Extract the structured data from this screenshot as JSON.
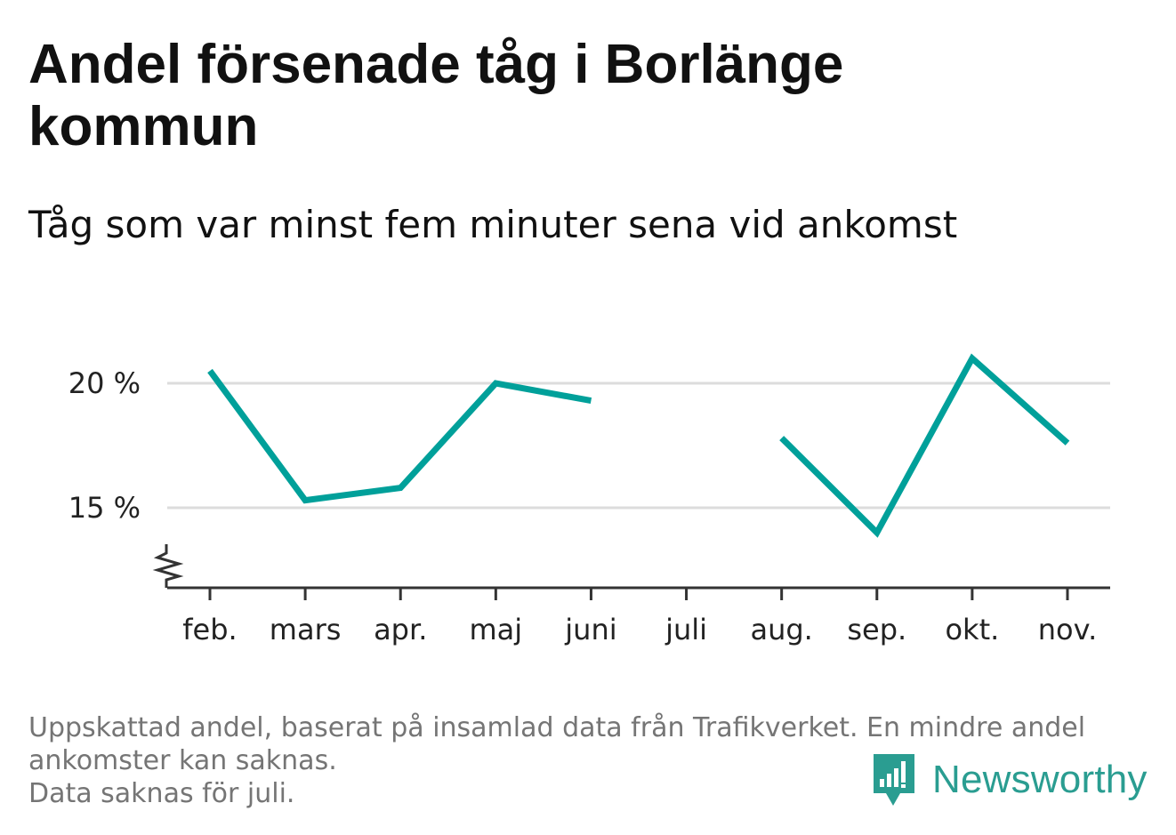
{
  "title": "Andel försenade tåg i Borlänge kommun",
  "subtitle": "Tåg som var minst fem minuter sena vid ankomst",
  "footnote": {
    "line1": "Uppskattad andel, baserat på insamlad data från Trafikverket. En mindre andel ankomster kan saknas.",
    "line2": "Data saknas för juli."
  },
  "brand": {
    "name": "Newsworthy",
    "logo_icon": "bar-chart-speech-bubble-icon",
    "color": "#2a9d91"
  },
  "chart_data": {
    "type": "line",
    "categories": [
      "feb.",
      "mars",
      "apr.",
      "maj",
      "juni",
      "juli",
      "aug.",
      "sep.",
      "okt.",
      "nov."
    ],
    "series": [
      {
        "values": [
          20.5,
          15.3,
          15.8,
          20.0,
          19.3,
          null,
          17.8,
          14.0,
          21.0,
          17.6
        ],
        "color": "#00a09a"
      }
    ],
    "yticks": [
      15,
      20
    ],
    "ytick_labels": [
      "15 %",
      "20 %"
    ],
    "ylim": [
      12,
      22.5
    ],
    "y_axis_break": true,
    "grid": true,
    "xlabel": "",
    "ylabel": ""
  }
}
